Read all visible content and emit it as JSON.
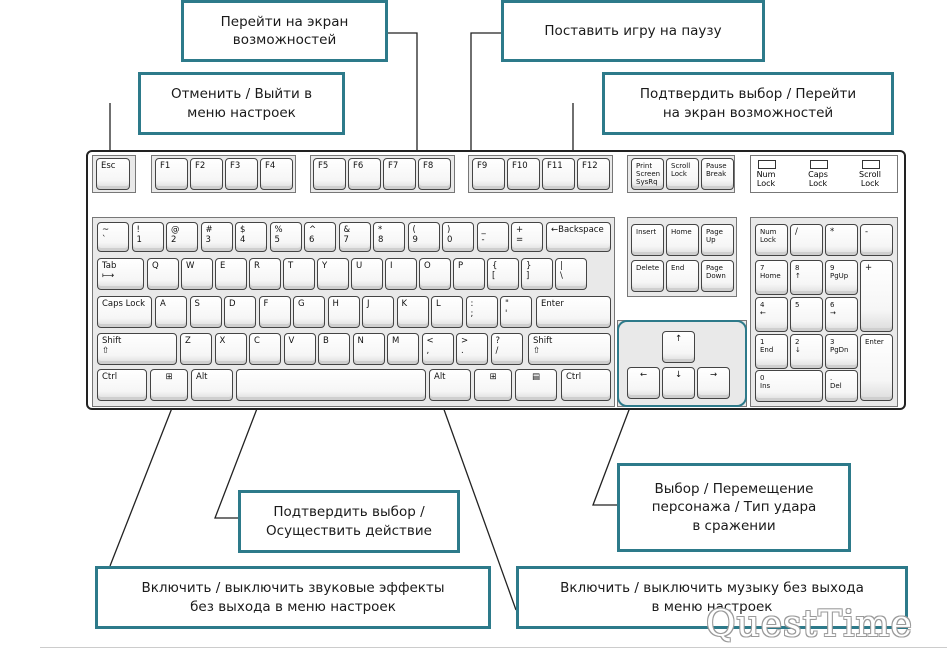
{
  "callouts": {
    "features_screen": "Перейти на экран\nвозможностей",
    "pause": "Поставить игру на паузу",
    "cancel_exit": "Отменить / Выйти в\nменю настроек",
    "confirm_features": "Подтвердить выбор / Перейти\nна экран возможностей",
    "confirm_action": "Подтвердить выбор /\nОсуществить действие",
    "select_move": "Выбор / Перемещение\nперсонажа / Тип удара\nв сражении",
    "toggle_sound": "Включить / выключить звуковые эффекты\nбез выхода в меню настроек",
    "toggle_music": "Включить / выключить музыку без выхода\nв меню настроек"
  },
  "keyboard": {
    "esc": "Esc",
    "f1": "F1",
    "f2": "F2",
    "f3": "F3",
    "f4": "F4",
    "f5": "F5",
    "f6": "F6",
    "f7": "F7",
    "f8": "F8",
    "f9": "F9",
    "f10": "F10",
    "f11": "F11",
    "f12": "F12",
    "print_screen": "Print\nScreen\nSysRq",
    "scroll_lock": "Scroll\nLock",
    "pause_break": "Pause\nBreak",
    "led_num": "Num\nLock",
    "led_caps": "Caps\nLock",
    "led_scroll": "Scroll\nLock",
    "row1": [
      "~\n`",
      "!\n1",
      "@\n2",
      "#\n3",
      "$\n4",
      "%\n5",
      "^\n6",
      "&\n7",
      "*\n8",
      "(\n9",
      ")\n0",
      "_\n-",
      "+\n="
    ],
    "backspace": "←Backspace",
    "tab": "Tab\n⟼",
    "row2": [
      "Q",
      "W",
      "E",
      "R",
      "T",
      "Y",
      "U",
      "I",
      "O",
      "P",
      "{\n[",
      "}\n]",
      "|\n\\"
    ],
    "caps_lock": "Caps Lock",
    "row3": [
      "A",
      "S",
      "D",
      "F",
      "G",
      "H",
      "J",
      "K",
      "L",
      ":\n;",
      "\"\n'"
    ],
    "enter": "Enter",
    "shift": "Shift\n⇧",
    "row4": [
      "Z",
      "X",
      "C",
      "V",
      "B",
      "N",
      "M",
      "<\n,",
      ">\n.",
      "?\n/"
    ],
    "ctrl": "Ctrl",
    "alt": "Alt",
    "win": "⊞",
    "menu": "▤",
    "insert": "Insert",
    "home": "Home",
    "page_up": "Page\nUp",
    "delete": "Delete",
    "end": "End",
    "page_down": "Page\nDown",
    "arrow_up": "↑",
    "arrow_left": "←",
    "arrow_down": "↓",
    "arrow_right": "→",
    "num_lock": "Num\nLock",
    "num_div": "/",
    "num_mul": "*",
    "num_minus": "-",
    "num7": "7\nHome",
    "num8": "8\n↑",
    "num9": "9\nPgUp",
    "num_plus": "+",
    "num4": "4\n←",
    "num5": "5",
    "num6": "6\n→",
    "num1": "1\nEnd",
    "num2": "2\n↓",
    "num3": "3\nPgDn",
    "num_enter": "Enter",
    "num0": "0\nIns",
    "num_del": ".\nDel"
  },
  "watermark": "QuestTime"
}
